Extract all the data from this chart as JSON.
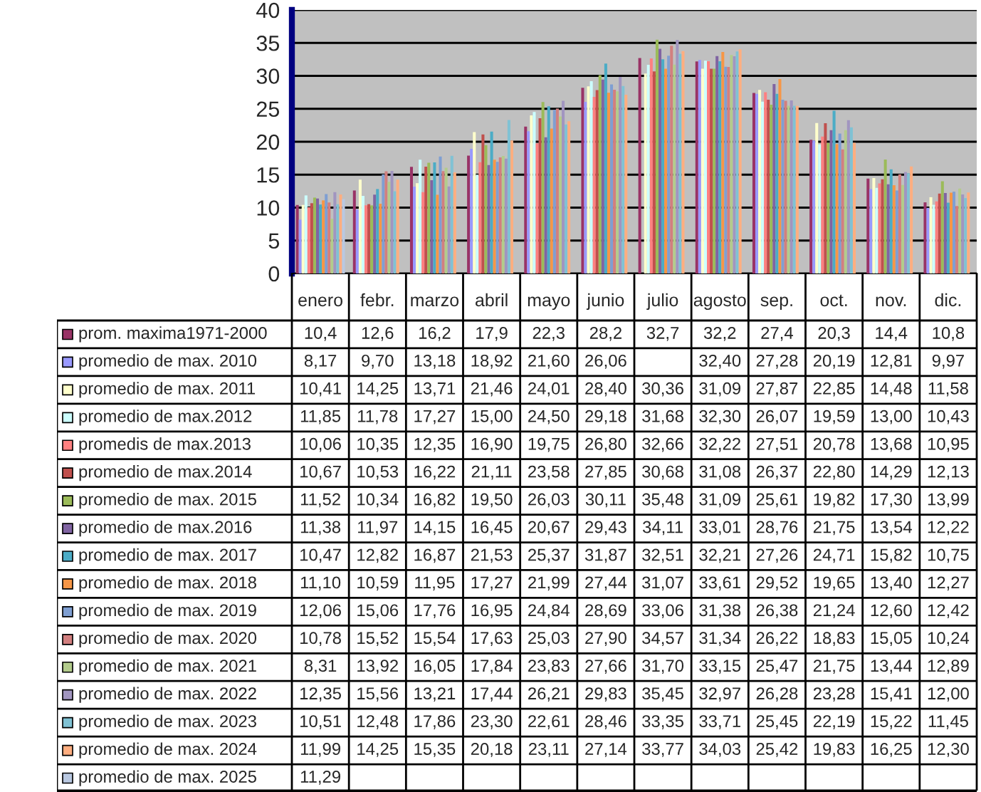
{
  "chart_data": {
    "type": "bar",
    "categories": [
      "enero",
      "febr.",
      "marzo",
      "abril",
      "mayo",
      "junio",
      "julio",
      "agosto",
      "sep.",
      "oct.",
      "nov.",
      "dic."
    ],
    "ylim": [
      0,
      40
    ],
    "yticks": [
      0,
      5,
      10,
      15,
      20,
      25,
      30,
      35,
      40
    ],
    "grid": "y",
    "legend": "left",
    "data_labels": true,
    "series": [
      {
        "name": "prom. maxima1971-2000",
        "color": "#993366",
        "values": [
          10.4,
          12.6,
          16.2,
          17.9,
          22.3,
          28.2,
          32.7,
          32.2,
          27.4,
          20.3,
          14.4,
          10.8
        ],
        "value_labels": [
          "10,4",
          "12,6",
          "16,2",
          "17,9",
          "22,3",
          "28,2",
          "32,7",
          "32,2",
          "27,4",
          "20,3",
          "14,4",
          "10,8"
        ]
      },
      {
        "name": "promedio de max. 2010",
        "color": "#9999ff",
        "values": [
          8.17,
          9.7,
          13.18,
          18.92,
          21.6,
          26.06,
          null,
          32.4,
          27.28,
          20.19,
          12.81,
          9.97
        ],
        "value_labels": [
          "8,17",
          "9,70",
          "13,18",
          "18,92",
          "21,60",
          "26,06",
          null,
          "32,40",
          "27,28",
          "20,19",
          "12,81",
          "9,97"
        ]
      },
      {
        "name": "promedio de max. 2011",
        "color": "#ffffcc",
        "values": [
          10.41,
          14.25,
          13.71,
          21.46,
          24.01,
          28.4,
          30.36,
          31.09,
          27.87,
          22.85,
          14.48,
          11.58
        ],
        "value_labels": [
          "10,41",
          "14,25",
          "13,71",
          "21,46",
          "24,01",
          "28,40",
          "30,36",
          "31,09",
          "27,87",
          "22,85",
          "14,48",
          "11,58"
        ]
      },
      {
        "name": "promedio de max.2012",
        "color": "#ccffff",
        "values": [
          11.85,
          11.78,
          17.27,
          15.0,
          24.5,
          29.18,
          31.68,
          32.3,
          26.07,
          19.59,
          13.0,
          10.43
        ],
        "value_labels": [
          "11,85",
          "11,78",
          "17,27",
          "15,00",
          "24,50",
          "29,18",
          "31,68",
          "32,30",
          "26,07",
          "19,59",
          "13,00",
          "10,43"
        ]
      },
      {
        "name": "promedis de max.2013",
        "color": "#ff8080",
        "values": [
          10.06,
          10.35,
          12.35,
          16.9,
          19.75,
          26.8,
          32.66,
          32.22,
          27.51,
          20.78,
          13.68,
          10.95
        ],
        "value_labels": [
          "10,06",
          "10,35",
          "12,35",
          "16,90",
          "19,75",
          "26,80",
          "32,66",
          "32,22",
          "27,51",
          "20,78",
          "13,68",
          "10,95"
        ]
      },
      {
        "name": "promedio de max.2014",
        "color": "#c0504d",
        "values": [
          10.67,
          10.53,
          16.22,
          21.11,
          23.58,
          27.85,
          30.68,
          31.08,
          26.37,
          22.8,
          14.29,
          12.13
        ],
        "value_labels": [
          "10,67",
          "10,53",
          "16,22",
          "21,11",
          "23,58",
          "27,85",
          "30,68",
          "31,08",
          "26,37",
          "22,80",
          "14,29",
          "12,13"
        ]
      },
      {
        "name": "promedio de max. 2015",
        "color": "#9bbb59",
        "values": [
          11.52,
          10.34,
          16.82,
          19.5,
          26.03,
          30.11,
          35.48,
          31.09,
          25.61,
          19.82,
          17.3,
          13.99
        ],
        "value_labels": [
          "11,52",
          "10,34",
          "16,82",
          "19,50",
          "26,03",
          "30,11",
          "35,48",
          "31,09",
          "25,61",
          "19,82",
          "17,30",
          "13,99"
        ]
      },
      {
        "name": "promedio de max.2016",
        "color": "#8064a2",
        "values": [
          11.38,
          11.97,
          14.15,
          16.45,
          20.67,
          29.43,
          34.11,
          33.01,
          28.76,
          21.75,
          13.54,
          12.22
        ],
        "value_labels": [
          "11,38",
          "11,97",
          "14,15",
          "16,45",
          "20,67",
          "29,43",
          "34,11",
          "33,01",
          "28,76",
          "21,75",
          "13,54",
          "12,22"
        ]
      },
      {
        "name": "promedio de max. 2017",
        "color": "#4bacc6",
        "values": [
          10.47,
          12.82,
          16.87,
          21.53,
          25.37,
          31.87,
          32.51,
          32.21,
          27.26,
          24.71,
          15.82,
          10.75
        ],
        "value_labels": [
          "10,47",
          "12,82",
          "16,87",
          "21,53",
          "25,37",
          "31,87",
          "32,51",
          "32,21",
          "27,26",
          "24,71",
          "15,82",
          "10,75"
        ]
      },
      {
        "name": "promedio de max. 2018",
        "color": "#f79646",
        "values": [
          11.1,
          10.59,
          11.95,
          17.27,
          21.99,
          27.44,
          31.07,
          33.61,
          29.52,
          19.65,
          13.4,
          12.27
        ],
        "value_labels": [
          "11,10",
          "10,59",
          "11,95",
          "17,27",
          "21,99",
          "27,44",
          "31,07",
          "33,61",
          "29,52",
          "19,65",
          "13,40",
          "12,27"
        ]
      },
      {
        "name": "promedio de max. 2019",
        "color": "#7f9fd2",
        "values": [
          12.06,
          15.06,
          17.76,
          16.95,
          24.84,
          28.69,
          33.06,
          31.38,
          26.38,
          21.24,
          12.6,
          12.42
        ],
        "value_labels": [
          "12,06",
          "15,06",
          "17,76",
          "16,95",
          "24,84",
          "28,69",
          "33,06",
          "31,38",
          "26,38",
          "21,24",
          "12,60",
          "12,42"
        ]
      },
      {
        "name": "promedio de max. 2020",
        "color": "#d27f7f",
        "values": [
          10.78,
          15.52,
          15.54,
          17.63,
          25.03,
          27.9,
          34.57,
          31.34,
          26.22,
          18.83,
          15.05,
          10.24
        ],
        "value_labels": [
          "10,78",
          "15,52",
          "15,54",
          "17,63",
          "25,03",
          "27,90",
          "34,57",
          "31,34",
          "26,22",
          "18,83",
          "15,05",
          "10,24"
        ]
      },
      {
        "name": "promedio de max. 2021",
        "color": "#b3cc8c",
        "values": [
          8.31,
          13.92,
          16.05,
          17.84,
          23.83,
          27.66,
          31.7,
          33.15,
          25.47,
          21.75,
          13.44,
          12.89
        ],
        "value_labels": [
          "8,31",
          "13,92",
          "16,05",
          "17,84",
          "23,83",
          "27,66",
          "31,70",
          "33,15",
          "25,47",
          "21,75",
          "13,44",
          "12,89"
        ]
      },
      {
        "name": "promedio de max. 2022",
        "color": "#a195c0",
        "values": [
          12.35,
          15.56,
          13.21,
          17.44,
          26.21,
          29.83,
          35.45,
          32.97,
          26.28,
          23.28,
          15.41,
          12.0
        ],
        "value_labels": [
          "12,35",
          "15,56",
          "13,21",
          "17,44",
          "26,21",
          "29,83",
          "35,45",
          "32,97",
          "26,28",
          "23,28",
          "15,41",
          "12,00"
        ]
      },
      {
        "name": "promedio de max. 2023",
        "color": "#80c2d4",
        "values": [
          10.51,
          12.48,
          17.86,
          23.3,
          22.61,
          28.46,
          33.35,
          33.71,
          25.45,
          22.19,
          15.22,
          11.45
        ],
        "value_labels": [
          "10,51",
          "12,48",
          "17,86",
          "23,30",
          "22,61",
          "28,46",
          "33,35",
          "33,71",
          "25,45",
          "22,19",
          "15,22",
          "11,45"
        ]
      },
      {
        "name": "promedio de max. 2024",
        "color": "#ffae80",
        "values": [
          11.99,
          14.25,
          15.35,
          20.18,
          23.11,
          27.14,
          33.77,
          34.03,
          25.42,
          19.83,
          16.25,
          12.3
        ],
        "value_labels": [
          "11,99",
          "14,25",
          "15,35",
          "20,18",
          "23,11",
          "27,14",
          "33,77",
          "34,03",
          "25,42",
          "19,83",
          "16,25",
          "12,30"
        ]
      },
      {
        "name": "promedio de max. 2025",
        "color": "#b9c8e1",
        "values": [
          11.29,
          null,
          null,
          null,
          null,
          null,
          null,
          null,
          null,
          null,
          null,
          null
        ],
        "value_labels": [
          "11,29",
          null,
          null,
          null,
          null,
          null,
          null,
          null,
          null,
          null,
          null,
          null
        ]
      }
    ]
  }
}
